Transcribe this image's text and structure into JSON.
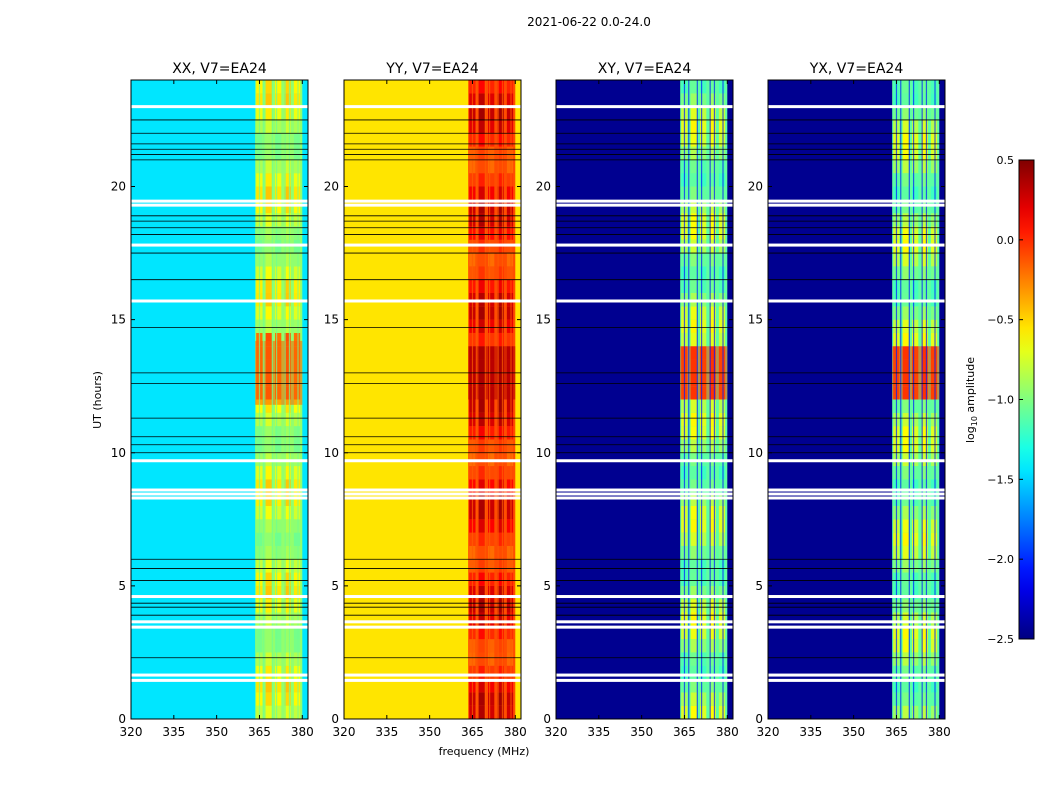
{
  "figure_title": "2021-06-22 0.0-24.0",
  "xlabel": "frequency (MHz)",
  "ylabel": "UT (hours)",
  "colorbar": {
    "label_prefix": "log",
    "label_sub": "10",
    "label_suffix": " amplitude",
    "range": [
      -2.5,
      0.5
    ],
    "ticks": [
      -2.5,
      -2.0,
      -1.5,
      -1.0,
      -0.5,
      0.0,
      0.5
    ],
    "tick_labels": [
      "−2.5",
      "−2.0",
      "−1.5",
      "−1.0",
      "−0.5",
      "0.0",
      "0.5"
    ],
    "colormap": "jet"
  },
  "chart_data": [
    {
      "type": "heatmap",
      "title": "XX, V7=EA24",
      "xlabel": "",
      "ylabel": "UT (hours)",
      "xlim": [
        320,
        382
      ],
      "ylim": [
        0,
        24
      ],
      "xticks": [
        320,
        335,
        350,
        365,
        380
      ],
      "yticks": [
        0,
        5,
        10,
        15,
        20
      ],
      "band_mhz": [
        363.5,
        380
      ],
      "base_level": -1.45,
      "band_level": -0.95,
      "peak": {
        "ut_range": [
          11.8,
          14.2
        ],
        "level": -0.15
      }
    },
    {
      "type": "heatmap",
      "title": "YY, V7=EA24",
      "xlabel": "frequency (MHz)",
      "ylabel": "",
      "xlim": [
        320,
        382
      ],
      "ylim": [
        0,
        24
      ],
      "xticks": [
        320,
        335,
        350,
        365,
        380
      ],
      "yticks": [
        0,
        5,
        10,
        15,
        20
      ],
      "band_mhz": [
        363.5,
        380
      ],
      "base_level": -0.55,
      "band_level": -0.1,
      "peak": {
        "ut_range": [
          12.0,
          14.0
        ],
        "level": 0.35
      }
    },
    {
      "type": "heatmap",
      "title": "XY, V7=EA24",
      "xlabel": "",
      "ylabel": "",
      "xlim": [
        320,
        382
      ],
      "ylim": [
        0,
        24
      ],
      "xticks": [
        320,
        335,
        350,
        365,
        380
      ],
      "yticks": [
        0,
        5,
        10,
        15,
        20
      ],
      "band_mhz": [
        363.5,
        380
      ],
      "base_level": -2.45,
      "band_level": -1.1,
      "peak": {
        "ut_range": [
          12.0,
          14.0
        ],
        "level": -0.05
      }
    },
    {
      "type": "heatmap",
      "title": "YX, V7=EA24",
      "xlabel": "",
      "ylabel": "",
      "xlim": [
        320,
        382
      ],
      "ylim": [
        0,
        24
      ],
      "xticks": [
        320,
        335,
        350,
        365,
        380
      ],
      "yticks": [
        0,
        5,
        10,
        15,
        20
      ],
      "band_mhz": [
        363.5,
        380
      ],
      "base_level": -2.45,
      "band_level": -1.1,
      "peak": {
        "ut_range": [
          12.0,
          14.0
        ],
        "level": -0.05
      }
    }
  ],
  "flagged_ut_hours": [
    1.45,
    1.65,
    3.45,
    3.65,
    4.6,
    8.3,
    8.45,
    8.6,
    9.7,
    15.7,
    17.8,
    19.3,
    19.45,
    23.0
  ],
  "gap_ut_hours": [
    2.3,
    3.9,
    4.2,
    4.35,
    5.2,
    5.65,
    6.0,
    10.0,
    10.3,
    10.6,
    11.3,
    12.6,
    13.0,
    14.7,
    16.5,
    17.5,
    18.2,
    18.45,
    18.7,
    18.9,
    21.0,
    21.2,
    21.4,
    21.6,
    22.0,
    22.5
  ],
  "stripe_mhz": [
    365,
    366.5,
    369.5,
    371,
    374,
    375.5,
    378.5
  ]
}
